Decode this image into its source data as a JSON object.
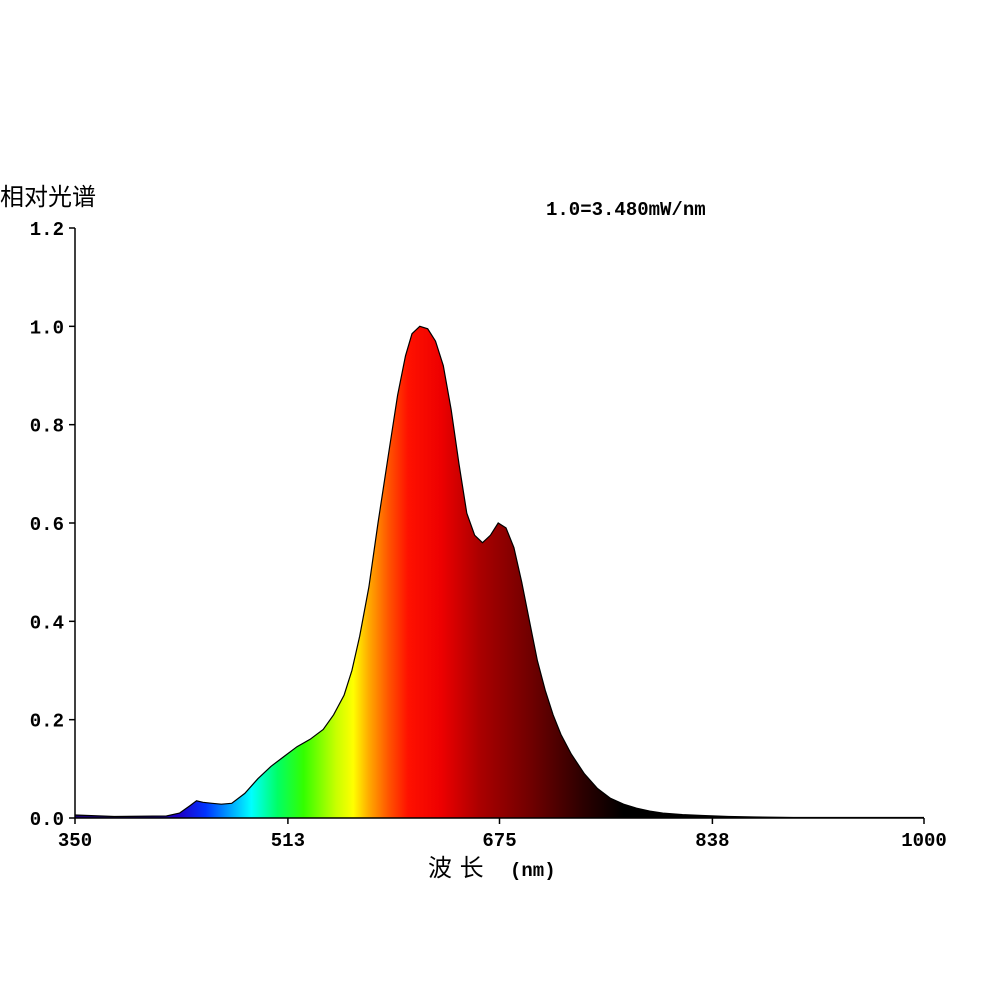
{
  "chart_data": {
    "type": "area",
    "ylabel": "相对光谱",
    "xlabel_main": "波 长",
    "xlabel_unit": "(nm)",
    "annotation": "1.0=3.480mW/nm",
    "xlim": [
      350,
      1000
    ],
    "ylim": [
      0,
      1.2
    ],
    "x_ticks": [
      350,
      513,
      675,
      838,
      1000
    ],
    "x_tick_labels": [
      "350",
      "513",
      "675",
      "838",
      "1000"
    ],
    "y_ticks": [
      0,
      0.2,
      0.4,
      0.6,
      0.8,
      1.0,
      1.2
    ],
    "y_tick_labels": [
      "0.0",
      "0.2",
      "0.4",
      "0.6",
      "0.8",
      "1.0",
      "1.2"
    ],
    "grid": false,
    "series": [
      {
        "x": [
          350,
          380,
          420,
          430,
          438,
          443,
          448,
          455,
          462,
          470,
          480,
          490,
          500,
          510,
          520,
          530,
          540,
          548,
          556,
          562,
          568,
          575,
          582,
          590,
          597,
          603,
          608,
          614,
          620,
          626,
          632,
          638,
          644,
          650,
          656,
          662,
          668,
          674,
          680,
          686,
          692,
          698,
          704,
          710,
          716,
          722,
          730,
          740,
          750,
          760,
          770,
          780,
          790,
          800,
          815,
          830,
          850,
          870,
          900,
          950,
          1000
        ],
        "y": [
          0.006,
          0.003,
          0.004,
          0.01,
          0.025,
          0.035,
          0.032,
          0.03,
          0.028,
          0.03,
          0.05,
          0.08,
          0.105,
          0.125,
          0.145,
          0.16,
          0.18,
          0.21,
          0.25,
          0.3,
          0.37,
          0.47,
          0.6,
          0.74,
          0.86,
          0.94,
          0.985,
          1.0,
          0.995,
          0.97,
          0.92,
          0.83,
          0.72,
          0.62,
          0.575,
          0.56,
          0.575,
          0.6,
          0.59,
          0.55,
          0.48,
          0.4,
          0.32,
          0.26,
          0.21,
          0.17,
          0.13,
          0.09,
          0.06,
          0.04,
          0.028,
          0.02,
          0.014,
          0.01,
          0.007,
          0.005,
          0.003,
          0.002,
          0.001,
          0.001,
          0.001
        ]
      }
    ]
  }
}
